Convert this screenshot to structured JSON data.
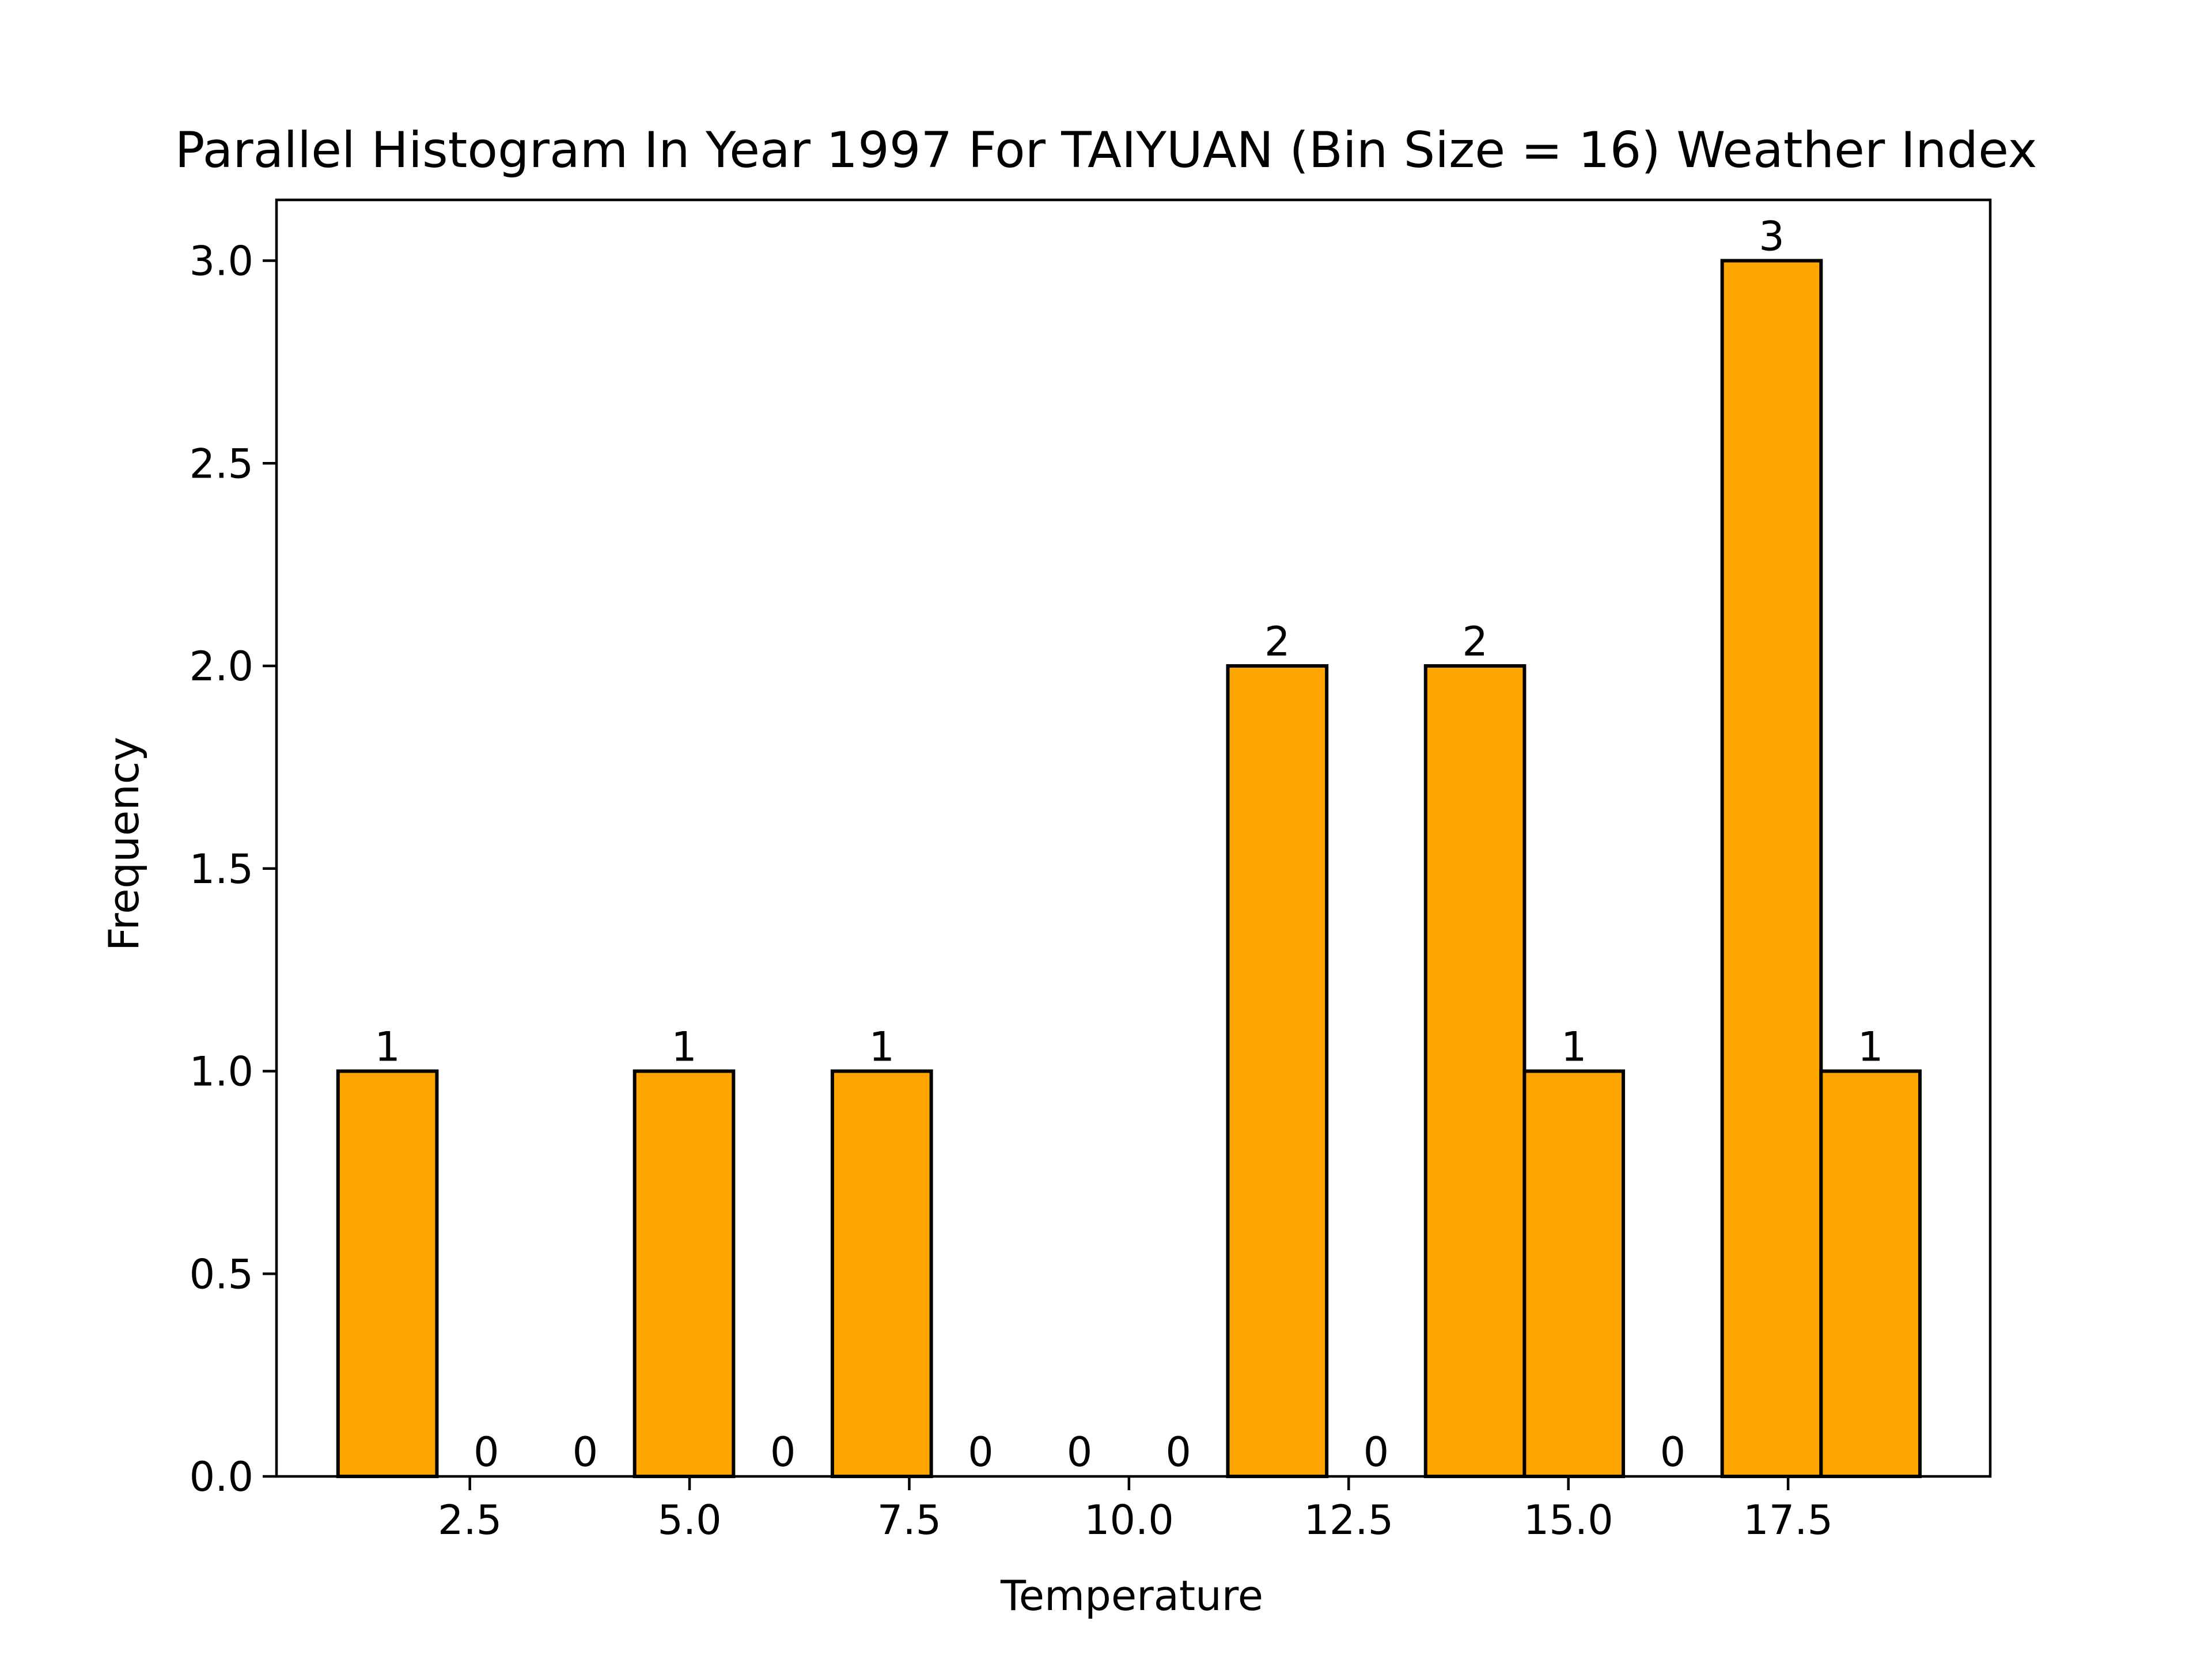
{
  "chart_data": {
    "type": "bar",
    "title": "Parallel Histogram In Year 1997 For TAIYUAN (Bin Size = 16) Weather Index",
    "xlabel": "Temperature",
    "ylabel": "Frequency",
    "bar_color": "#ffa500",
    "edge_color": "#000000",
    "xlim": [
      0.3,
      19.8
    ],
    "ylim": [
      0,
      3.15
    ],
    "xticks": [
      2.5,
      5.0,
      7.5,
      10.0,
      12.5,
      15.0,
      17.5
    ],
    "xtick_labels": [
      "2.5",
      "5.0",
      "7.5",
      "10.0",
      "12.5",
      "15.0",
      "17.5"
    ],
    "yticks": [
      0.0,
      0.5,
      1.0,
      1.5,
      2.0,
      2.5,
      3.0
    ],
    "ytick_labels": [
      "0.0",
      "0.5",
      "1.0",
      "1.5",
      "2.0",
      "2.5",
      "3.0"
    ],
    "bin_width": 1.125,
    "bins": [
      {
        "x_start": 1.0,
        "value": 1,
        "label": "1"
      },
      {
        "x_start": 2.125,
        "value": 0,
        "label": "0"
      },
      {
        "x_start": 3.25,
        "value": 0,
        "label": "0"
      },
      {
        "x_start": 4.375,
        "value": 1,
        "label": "1"
      },
      {
        "x_start": 5.5,
        "value": 0,
        "label": "0"
      },
      {
        "x_start": 6.625,
        "value": 1,
        "label": "1"
      },
      {
        "x_start": 7.75,
        "value": 0,
        "label": "0"
      },
      {
        "x_start": 8.875,
        "value": 0,
        "label": "0"
      },
      {
        "x_start": 10.0,
        "value": 0,
        "label": "0"
      },
      {
        "x_start": 11.125,
        "value": 2,
        "label": "2"
      },
      {
        "x_start": 12.25,
        "value": 0,
        "label": "0"
      },
      {
        "x_start": 13.375,
        "value": 2,
        "label": "2"
      },
      {
        "x_start": 14.5,
        "value": 1,
        "label": "1"
      },
      {
        "x_start": 15.625,
        "value": 0,
        "label": "0"
      },
      {
        "x_start": 16.75,
        "value": 3,
        "label": "3"
      },
      {
        "x_start": 17.875,
        "value": 1,
        "label": "1"
      }
    ]
  }
}
